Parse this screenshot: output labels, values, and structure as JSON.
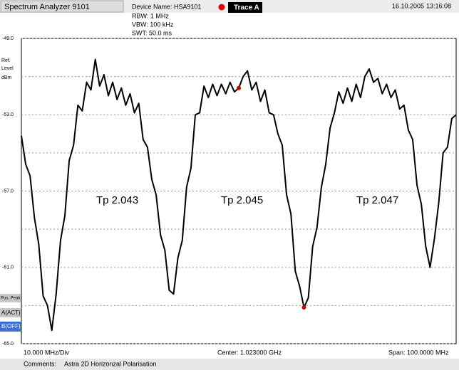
{
  "header": {
    "app_title": "Spectrum Analyzer 9101",
    "device": "Device Name: HSA9101",
    "date": "16.10.2005",
    "time": "13:16:08"
  },
  "settings": [
    "RBW:  1 MHz",
    "VBW:  100 kHz",
    "SWT:  50.0 ms"
  ],
  "side_buttons": [
    "Pos. Peak",
    "A(ACT)",
    "B(OFF)"
  ],
  "footer": {
    "div": "10.000 MHz/Div",
    "center": "Center: 1.023000 GHz",
    "span": "Span: 100.0000  MHz",
    "comments_label": "Comments:",
    "comments": "Astra 2D Horizonzal Polarisation"
  },
  "chart_data": {
    "type": "line",
    "y_label": [
      "Ref.",
      "Level",
      "dBm"
    ],
    "annotations": [
      "Tp 2.043",
      "Tp 2.045",
      "Tp 2.047"
    ],
    "xlim": [
      973,
      1073
    ],
    "ylim": [
      -65,
      -49
    ],
    "yticks": [
      {
        "value": -49,
        "label": "-49.0"
      },
      {
        "value": -53,
        "label": "-53.0"
      },
      {
        "value": -57,
        "label": "-57.0"
      },
      {
        "value": -61,
        "label": "-61.0"
      },
      {
        "value": -65,
        "label": "-65.0"
      }
    ],
    "minor_yticks": [
      -51,
      -55,
      -59,
      -63
    ],
    "grid": true,
    "series": [
      {
        "name": "Trace A",
        "color": "#000000",
        "x": [
          973,
          974,
          975,
          976,
          977,
          978,
          979,
          980,
          981,
          982,
          983,
          984,
          985,
          986,
          987,
          988,
          989,
          990,
          991,
          992,
          993,
          994,
          995,
          996,
          997,
          998,
          999,
          1000,
          1001,
          1002,
          1003,
          1004,
          1005,
          1006,
          1007,
          1008,
          1009,
          1010,
          1011,
          1012,
          1013,
          1014,
          1015,
          1016,
          1017,
          1018,
          1019,
          1020,
          1021,
          1022,
          1023,
          1024,
          1025,
          1026,
          1027,
          1028,
          1029,
          1030,
          1031,
          1032,
          1033,
          1034,
          1035,
          1036,
          1037,
          1038,
          1039,
          1040,
          1041,
          1042,
          1043,
          1044,
          1045,
          1046,
          1047,
          1048,
          1049,
          1050,
          1051,
          1052,
          1053,
          1054,
          1055,
          1056,
          1057,
          1058,
          1059,
          1060,
          1061,
          1062,
          1063,
          1064,
          1065,
          1066,
          1067,
          1068,
          1069,
          1070,
          1071,
          1072,
          1073
        ],
        "values": [
          -54.1,
          -55.6,
          -56.2,
          -58.4,
          -59.8,
          -62.5,
          -63.0,
          -64.3,
          -62.4,
          -59.6,
          -58.3,
          -55.4,
          -54.6,
          -52.5,
          -52.8,
          -51.3,
          -51.7,
          -50.1,
          -51.5,
          -50.9,
          -52.0,
          -51.3,
          -52.2,
          -51.6,
          -52.5,
          -51.9,
          -52.9,
          -52.4,
          -54.3,
          -54.7,
          -56.4,
          -57.2,
          -59.3,
          -60.1,
          -62.2,
          -62.4,
          -60.5,
          -59.6,
          -56.8,
          -55.8,
          -53.0,
          -52.9,
          -51.5,
          -52.1,
          -51.4,
          -52.0,
          -51.4,
          -51.9,
          -51.3,
          -51.8,
          -51.6,
          -51.0,
          -50.7,
          -51.7,
          -51.3,
          -52.3,
          -51.7,
          -52.9,
          -53.0,
          -54.0,
          -54.6,
          -57.2,
          -58.2,
          -61.2,
          -62.0,
          -63.1,
          -62.6,
          -59.9,
          -58.9,
          -56.8,
          -55.6,
          -53.7,
          -52.9,
          -51.8,
          -52.4,
          -51.6,
          -52.3,
          -51.4,
          -52.1,
          -51.0,
          -50.6,
          -51.3,
          -51.1,
          -51.9,
          -51.4,
          -52.1,
          -51.7,
          -52.7,
          -52.5,
          -53.8,
          -54.3,
          -56.7,
          -57.7,
          -59.9,
          -61.0,
          -59.5,
          -57.6,
          -55.0,
          -54.7,
          -53.2,
          -53.0
        ]
      }
    ],
    "markers": {
      "color": "#cc0000",
      "x": [
        1023,
        1038
      ],
      "y": [
        -51.6,
        -63.1
      ]
    }
  }
}
